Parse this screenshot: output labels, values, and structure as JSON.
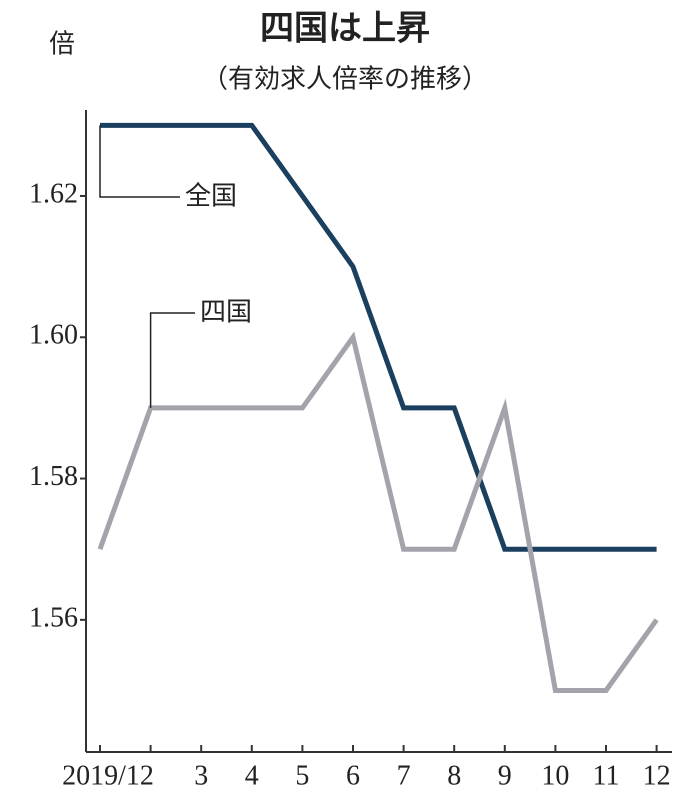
{
  "chart_data": {
    "type": "line",
    "title": "四国は上昇",
    "subtitle": "（有効求人倍率の推移）",
    "y_label": "倍",
    "categories": [
      "2019/12",
      null,
      "3",
      "4",
      "5",
      "6",
      "7",
      "8",
      "9",
      "10",
      "11",
      "12"
    ],
    "series": [
      {
        "name": "全国",
        "color": "#1b3f5e",
        "values": [
          1.63,
          1.63,
          1.63,
          1.63,
          1.62,
          1.61,
          1.59,
          1.59,
          1.57,
          1.57,
          1.57,
          1.57
        ]
      },
      {
        "name": "四国",
        "color": "#a3a3ab",
        "values": [
          1.57,
          1.59,
          1.59,
          1.59,
          1.59,
          1.6,
          1.57,
          1.57,
          1.59,
          1.55,
          1.55,
          1.56
        ]
      }
    ],
    "ylim": [
      1.542,
      1.635
    ],
    "yticks": [
      1.56,
      1.58,
      {
        "value": 1.6,
        "label": "1.60"
      },
      1.62
    ]
  }
}
